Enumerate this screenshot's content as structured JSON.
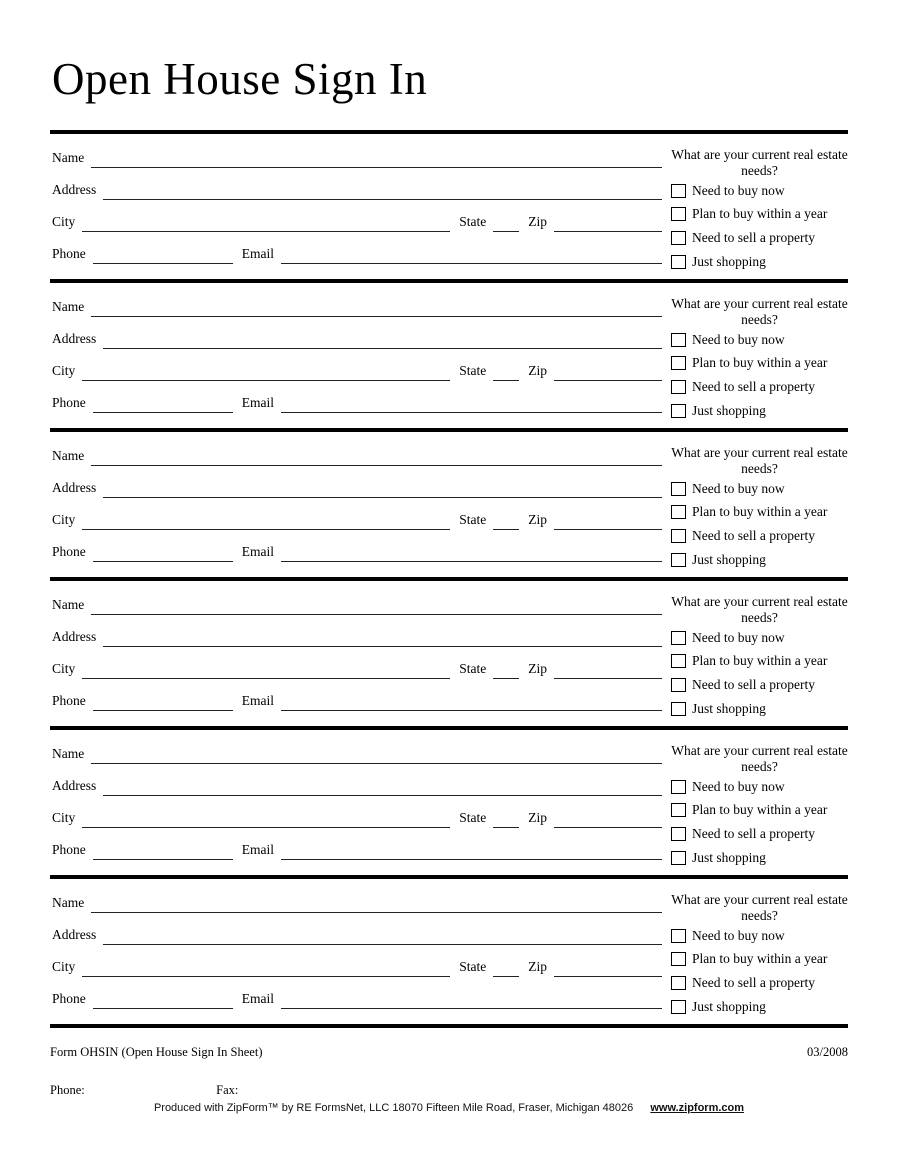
{
  "page": {
    "title": "Open House Sign In"
  },
  "entry_section": {
    "count": 6,
    "labels": {
      "name": "Name",
      "address": "Address",
      "city": "City",
      "state": "State",
      "zip": "Zip",
      "phone": "Phone",
      "email": "Email"
    },
    "needs": {
      "question": "What are your current real estate needs?",
      "options": [
        "Need to buy now",
        "Plan to buy within a year",
        "Need to sell a property",
        "Just shopping"
      ]
    }
  },
  "footer": {
    "form_id": "Form OHSIN (Open House Sign In Sheet)",
    "revision_date": "03/2008",
    "phone_label": "Phone:",
    "fax_label": "Fax:",
    "produced_by": "Produced with ZipForm™ by RE FormsNet, LLC 18070 Fifteen Mile Road, Fraser, Michigan 48026",
    "website": "www.zipform.com"
  },
  "colors": {
    "background": "#ffffff",
    "text": "#000000",
    "rule": "#000000",
    "field_line": "#222222"
  }
}
